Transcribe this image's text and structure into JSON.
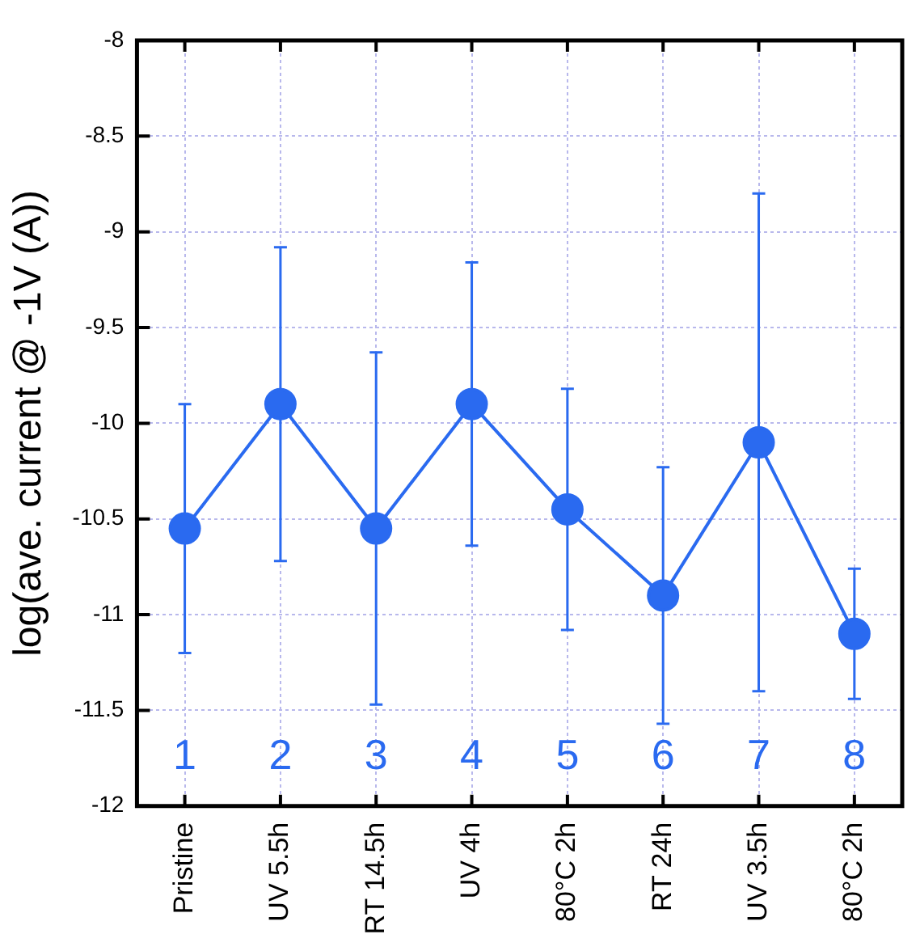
{
  "chart_data": {
    "type": "line",
    "ylabel": "log(ave. current @ -1V (A))",
    "categories": [
      "Pristine",
      "UV 5.5h",
      "RT 14.5h",
      "UV 4h",
      "80°C 2h",
      "RT 24h",
      "UV 3.5h",
      "80°C 2h"
    ],
    "series": [
      {
        "color": "#2a6af0",
        "values": [
          -10.55,
          -9.9,
          -10.55,
          -9.9,
          -10.45,
          -10.9,
          -10.1,
          -11.1
        ],
        "errors": [
          [
            -11.2,
            -9.9
          ],
          [
            -10.72,
            -9.08
          ],
          [
            -11.47,
            -9.63
          ],
          [
            -10.64,
            -9.16
          ],
          [
            -11.08,
            -9.82
          ],
          [
            -11.57,
            -10.23
          ],
          [
            -11.4,
            -8.8
          ],
          [
            -11.44,
            -10.76
          ]
        ]
      }
    ],
    "ylim": [
      -12,
      -8
    ],
    "yticks": [
      -12,
      -11.5,
      -11,
      -10.5,
      -10,
      -9.5,
      -9,
      -8.5,
      -8
    ],
    "grid": true,
    "marker": "circle",
    "line_style": "solid",
    "legend": false,
    "annotations": [
      "1",
      "2",
      "3",
      "4",
      "5",
      "6",
      "7",
      "8"
    ]
  }
}
